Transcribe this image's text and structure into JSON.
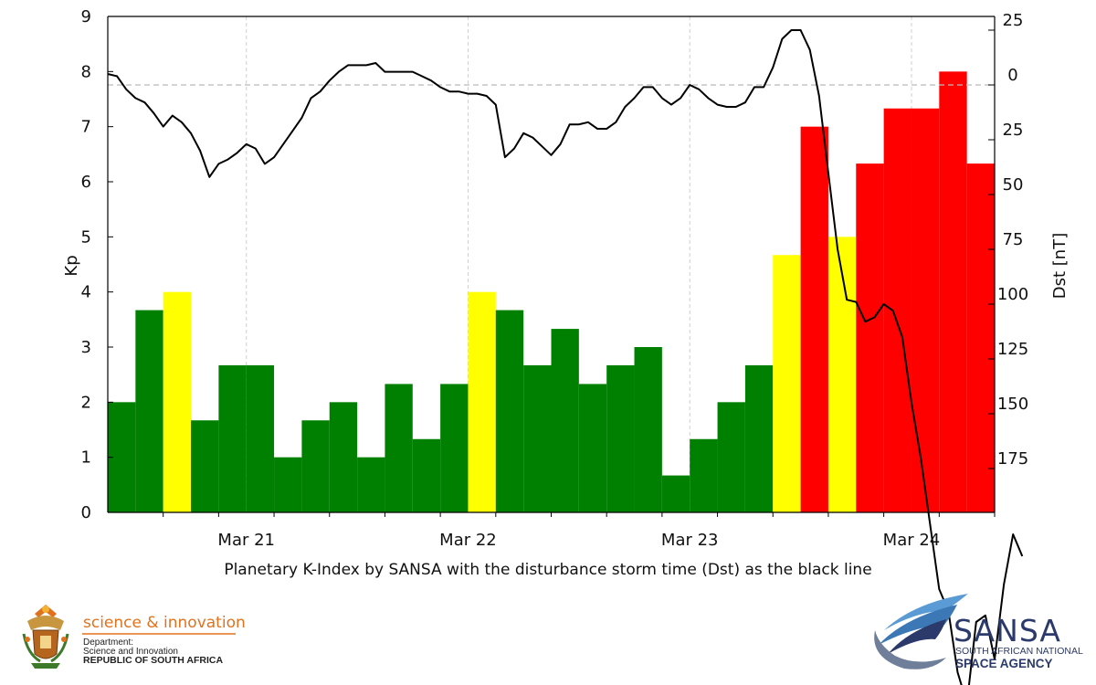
{
  "chart_data": {
    "type": "bar",
    "caption": "Planetary K-Index by SANSA with the disturbance storm time (Dst) as the black line",
    "ylabel": "Kp",
    "y2label": "Dst [nT]",
    "ylim": [
      0,
      9
    ],
    "y_ticks": [
      "0",
      "1",
      "2",
      "3",
      "4",
      "5",
      "6",
      "7",
      "8",
      "9"
    ],
    "y2_ticks": [
      {
        "value": 25,
        "label": "25"
      },
      {
        "value": 0,
        "label": "0"
      },
      {
        "value": -25,
        "label": "25"
      },
      {
        "value": -50,
        "label": "50"
      },
      {
        "value": -75,
        "label": "75"
      },
      {
        "value": -100,
        "label": "100"
      },
      {
        "value": -125,
        "label": "125"
      },
      {
        "value": -150,
        "label": "150"
      },
      {
        "value": -175,
        "label": "175"
      }
    ],
    "x_labels": [
      {
        "label": "Mar 21",
        "day": 1
      },
      {
        "label": "Mar 22",
        "day": 2
      },
      {
        "label": "Mar 23",
        "day": 3
      },
      {
        "label": "Mar 24",
        "day": 4
      }
    ],
    "x_start_hours_before_first_label": 15,
    "bar_interval_hours": 3,
    "kp_values": [
      2.0,
      3.67,
      4.0,
      1.67,
      2.67,
      2.67,
      1.0,
      1.67,
      2.0,
      1.0,
      2.33,
      1.33,
      2.33,
      4.0,
      3.67,
      2.67,
      3.33,
      2.33,
      2.67,
      3.0,
      0.67,
      1.33,
      2.0,
      2.67,
      4.67,
      7.0,
      5.0,
      6.33,
      7.33,
      7.33,
      8.0,
      6.33
    ],
    "kp_colors": {
      "quiet": {
        "max_below": 4,
        "color": "#008000"
      },
      "active": {
        "max_below": 5.01,
        "color": "#ffff00"
      },
      "storm": {
        "color": "#ff0000"
      }
    },
    "dst_reference_line": 0,
    "dst_hourly": [
      5,
      4,
      -2,
      -6,
      -8,
      -13,
      -19,
      -14,
      -17,
      -22,
      -30,
      -42,
      -36,
      -34,
      -31,
      -27,
      -29,
      -36,
      -33,
      -27,
      -21,
      -15,
      -6,
      -3,
      2,
      6,
      9,
      9,
      9,
      10,
      6,
      6,
      6,
      6,
      4,
      2,
      -1,
      -3,
      -3,
      -4,
      -4,
      -5,
      -9,
      -33,
      -29,
      -22,
      -24,
      -28,
      -32,
      -27,
      -18,
      -18,
      -17,
      -20,
      -20,
      -17,
      -10,
      -6,
      -1,
      -1,
      -6,
      -9,
      -6,
      0,
      -2,
      -6,
      -9,
      -10,
      -10,
      -8,
      -1,
      -1,
      8,
      21,
      25,
      25,
      16,
      -5,
      -40,
      -75,
      -98,
      -99,
      -108,
      -106,
      -100,
      -103,
      -115,
      -145,
      -170,
      -200,
      -230,
      -240,
      -268,
      -282,
      -245,
      -242,
      -262,
      -228,
      -205,
      -215
    ]
  },
  "logos": {
    "dsi": {
      "line1": "science & innovation",
      "line2": "Department:",
      "line3": "Science and Innovation",
      "line4": "REPUBLIC OF SOUTH AFRICA",
      "accent": "#e0721e"
    },
    "sansa": {
      "word": "SANSA",
      "line1": "SOUTH AFRICAN NATIONAL",
      "line2": "SPACE AGENCY",
      "brand_dark": "#2b3a6b",
      "brand_light": "#5b9bd5"
    }
  }
}
